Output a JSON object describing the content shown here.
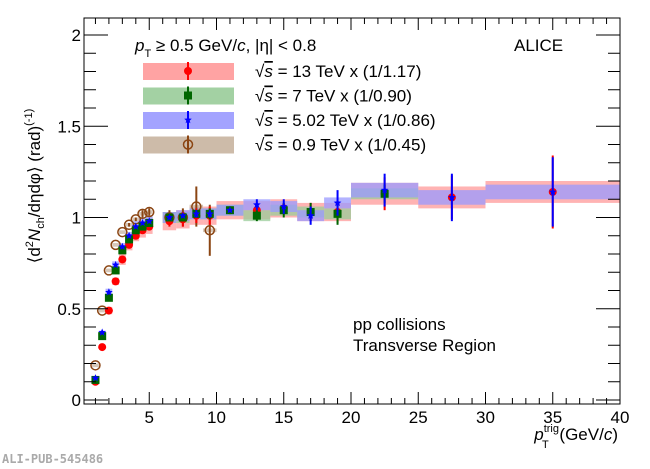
{
  "chart_data": {
    "type": "scatter",
    "title": "",
    "xlabel": "p_T^trig (GeV/c)",
    "ylabel": "⟨d²N_ch/dηdφ⟩ (rad)^(-1)",
    "xlim": [
      0.2,
      40
    ],
    "ylim": [
      -0.02,
      2.1
    ],
    "x_ticks": [
      "5",
      "10",
      "15",
      "20",
      "25",
      "30",
      "35",
      "40"
    ],
    "y_ticks": [
      "0",
      "0.5",
      "1",
      "1.5",
      "2"
    ],
    "annotations": {
      "cuts_text_pt": "p",
      "cuts_text_sub": "T",
      "cuts_text_rest": " ≥ 0.5 GeV/c, |η| < 0.8",
      "experiment": "ALICE",
      "system_line1": "pp collisions",
      "system_line2": "Transverse Region",
      "watermark": "ALI-PUB-545486"
    },
    "legend_position": "top-left",
    "series": [
      {
        "name": "√s = 13 TeV x (1/1.17)",
        "legend_label": "= 13 TeV x (1/1.17)",
        "marker": "circle-filled",
        "color": "#ff0000",
        "band_color": "#ff9999",
        "x": [
          1.0,
          1.5,
          2.0,
          2.5,
          3.0,
          3.5,
          4.0,
          4.5,
          5.0,
          6.5,
          7.5,
          8.5,
          9.5,
          11,
          13,
          15,
          17,
          19,
          22.5,
          27.5,
          35
        ],
        "y": [
          0.1,
          0.29,
          0.49,
          0.65,
          0.77,
          0.85,
          0.9,
          0.93,
          0.95,
          0.98,
          0.99,
          1.01,
          1.01,
          1.04,
          1.04,
          1.05,
          1.03,
          1.03,
          1.13,
          1.11,
          1.14
        ],
        "stat_err": [
          0,
          0,
          0,
          0,
          0,
          0,
          0,
          0,
          0,
          0.03,
          0.04,
          0.04,
          0.05,
          0.01,
          0.02,
          0.03,
          0.05,
          0.06,
          0.09,
          0.12,
          0.2
        ],
        "sys_err": [
          0.01,
          0.01,
          0.02,
          0.02,
          0.03,
          0.03,
          0.03,
          0.04,
          0.04,
          0.05,
          0.05,
          0.05,
          0.05,
          0.05,
          0.05,
          0.05,
          0.05,
          0.05,
          0.06,
          0.06,
          0.06
        ]
      },
      {
        "name": "√s = 7 TeV x (1/0.90)",
        "legend_label": "= 7 TeV x (1/0.90)",
        "marker": "square-filled",
        "color": "#006600",
        "band_color": "#99cc99",
        "x": [
          1.0,
          1.5,
          2.0,
          2.5,
          3.0,
          3.5,
          4.0,
          4.5,
          5.0,
          6.5,
          7.5,
          8.5,
          9.5,
          11,
          13,
          15,
          17,
          19,
          22.5
        ],
        "y": [
          0.11,
          0.35,
          0.56,
          0.71,
          0.82,
          0.88,
          0.93,
          0.95,
          0.97,
          1.0,
          1.0,
          1.02,
          1.02,
          1.04,
          1.01,
          1.04,
          1.03,
          1.02,
          1.13
        ],
        "stat_err": [
          0,
          0,
          0,
          0,
          0,
          0,
          0,
          0,
          0,
          0.02,
          0.02,
          0.02,
          0.03,
          0.01,
          0.03,
          0.04,
          0.05,
          0.06,
          0.05
        ],
        "sys_err": [
          0.01,
          0.01,
          0.02,
          0.02,
          0.02,
          0.02,
          0.03,
          0.03,
          0.03,
          0.03,
          0.03,
          0.03,
          0.03,
          0.03,
          0.03,
          0.03,
          0.03,
          0.03,
          0.03
        ]
      },
      {
        "name": "√s = 5.02 TeV x (1/0.86)",
        "legend_label": "= 5.02 TeV x (1/0.86)",
        "marker": "star",
        "color": "#0000ff",
        "band_color": "#9999ff",
        "x": [
          1.0,
          1.5,
          2.0,
          2.5,
          3.0,
          3.5,
          4.0,
          4.5,
          5.0,
          6.5,
          7.5,
          8.5,
          9.5,
          11,
          13,
          15,
          17,
          19,
          22.5,
          27.5,
          35
        ],
        "y": [
          0.12,
          0.37,
          0.59,
          0.74,
          0.84,
          0.9,
          0.95,
          0.97,
          0.98,
          1.0,
          1.01,
          1.02,
          1.02,
          1.04,
          1.07,
          1.06,
          1.01,
          1.08,
          1.15,
          1.11,
          1.14
        ],
        "stat_err": [
          0,
          0,
          0,
          0,
          0,
          0,
          0,
          0,
          0,
          0.01,
          0.01,
          0.02,
          0.02,
          0.01,
          0.03,
          0.04,
          0.05,
          0.07,
          0.09,
          0.13,
          0.19
        ],
        "sys_err": [
          0.01,
          0.01,
          0.02,
          0.02,
          0.02,
          0.02,
          0.03,
          0.03,
          0.03,
          0.03,
          0.03,
          0.03,
          0.03,
          0.03,
          0.03,
          0.03,
          0.03,
          0.03,
          0.04,
          0.04,
          0.04
        ]
      },
      {
        "name": "√s = 0.9 TeV x (1/0.45)",
        "legend_label": "= 0.9 TeV x (1/0.45)",
        "marker": "circle-open",
        "color": "#8b4513",
        "band_color": "#c8b4a0",
        "x": [
          1.0,
          1.5,
          2.0,
          2.5,
          3.0,
          3.5,
          4.0,
          4.5,
          5.0,
          6.5,
          7.5,
          8.5,
          9.5
        ],
        "y": [
          0.19,
          0.49,
          0.71,
          0.85,
          0.92,
          0.96,
          0.99,
          1.02,
          1.03,
          1.0,
          1.0,
          1.06,
          0.93
        ],
        "stat_err": [
          0,
          0,
          0,
          0,
          0,
          0.01,
          0.01,
          0.02,
          0.02,
          0.04,
          0.05,
          0.11,
          0.14
        ],
        "sys_err": [
          0.01,
          0.01,
          0.01,
          0.01,
          0.01,
          0.01,
          0.01,
          0.01,
          0.01,
          0.01,
          0.01,
          0.01,
          0.01
        ]
      }
    ],
    "bands_high_pt": [
      {
        "series": 0,
        "x_edges": [
          [
            10,
            12
          ],
          [
            12,
            14
          ],
          [
            14,
            16
          ],
          [
            16,
            18
          ],
          [
            18,
            20
          ],
          [
            20,
            25
          ],
          [
            25,
            30
          ],
          [
            30,
            40
          ]
        ]
      },
      {
        "series": 1,
        "x_edges": [
          [
            10,
            12
          ],
          [
            12,
            14
          ],
          [
            14,
            16
          ],
          [
            16,
            18
          ],
          [
            18,
            20
          ],
          [
            20,
            25
          ]
        ]
      },
      {
        "series": 2,
        "x_edges": [
          [
            10,
            12
          ],
          [
            12,
            14
          ],
          [
            14,
            16
          ],
          [
            16,
            18
          ],
          [
            18,
            20
          ],
          [
            20,
            25
          ],
          [
            25,
            30
          ],
          [
            30,
            40
          ]
        ]
      }
    ]
  }
}
